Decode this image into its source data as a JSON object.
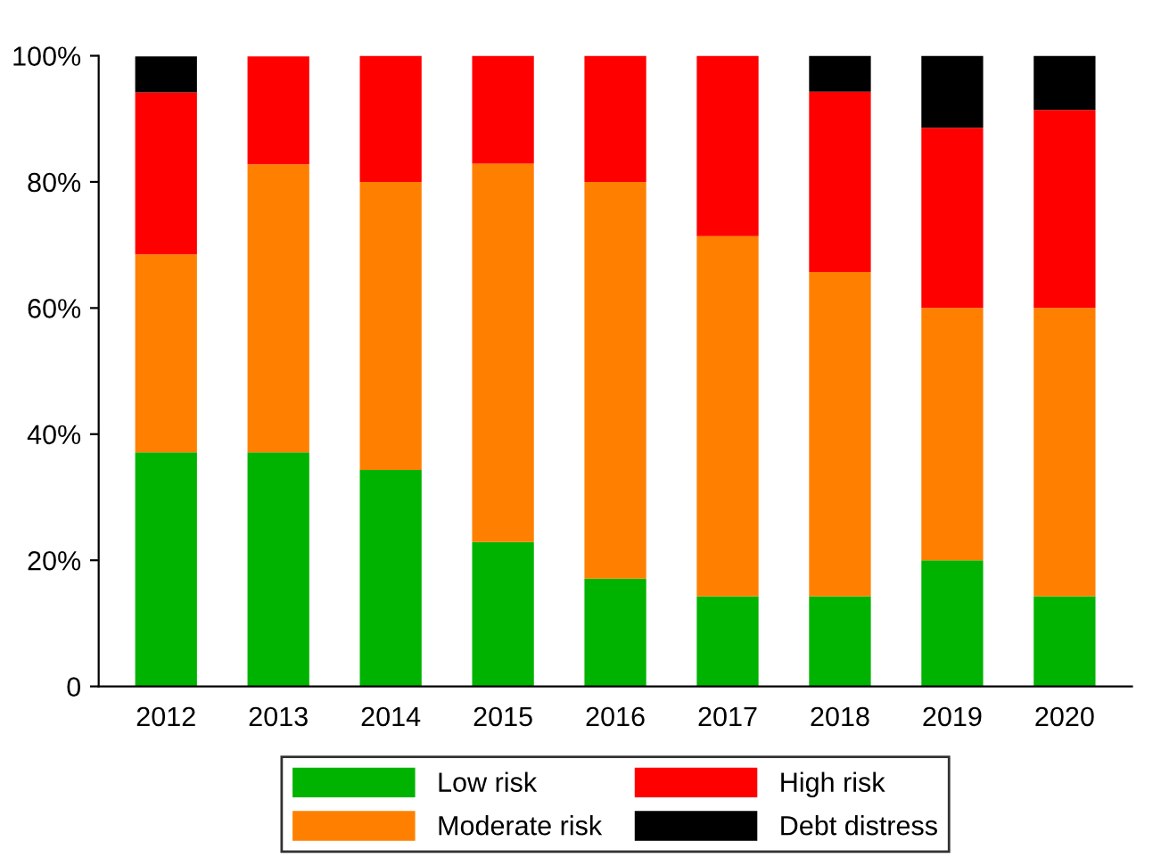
{
  "chart_data": {
    "type": "bar",
    "stacked": true,
    "categories": [
      "2012",
      "2013",
      "2014",
      "2015",
      "2016",
      "2017",
      "2018",
      "2019",
      "2020"
    ],
    "series": [
      {
        "name": "Low risk",
        "color": "#00b300",
        "values": [
          37.1,
          37.1,
          34.3,
          22.9,
          17.1,
          14.3,
          14.3,
          20.0,
          14.3
        ]
      },
      {
        "name": "Moderate risk",
        "color": "#ff8000",
        "values": [
          31.4,
          45.7,
          45.7,
          60.0,
          62.9,
          57.1,
          51.4,
          40.0,
          45.7
        ]
      },
      {
        "name": "High risk",
        "color": "#ff0000",
        "values": [
          25.7,
          17.1,
          20.0,
          17.1,
          20.0,
          28.6,
          28.6,
          28.6,
          31.4
        ]
      },
      {
        "name": "Debt distress",
        "color": "#000000",
        "values": [
          5.7,
          0,
          0,
          0,
          0,
          0,
          5.7,
          11.4,
          8.6
        ]
      }
    ],
    "ylim": [
      0,
      100
    ],
    "yticks": [
      0,
      {
        "value": 20,
        "label": "20%"
      },
      {
        "value": 40,
        "label": "40%"
      },
      {
        "value": 60,
        "label": "60%"
      },
      {
        "value": 80,
        "label": "80%"
      },
      {
        "value": 100,
        "label": "100%"
      }
    ],
    "grid": false,
    "legend": "bottom"
  }
}
